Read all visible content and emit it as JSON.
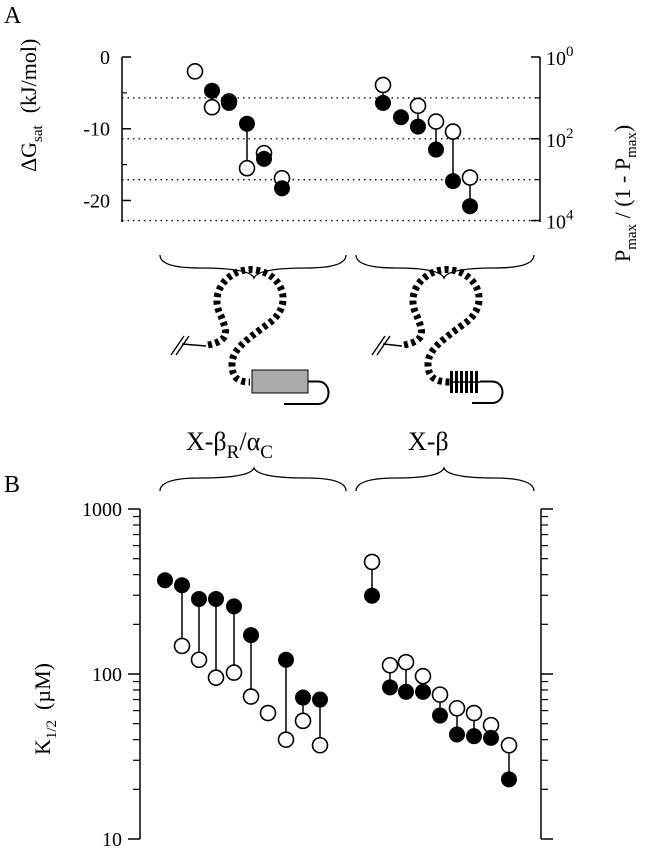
{
  "chart_data": [
    {
      "panel": "A",
      "type": "scatter",
      "ylabel_left_main": "ΔG",
      "ylabel_left_sub": "sat",
      "ylabel_left_units": "(kJ/mol)",
      "ylim": [
        -23,
        0
      ],
      "yticks": [
        {
          "value": 0,
          "label": "0"
        },
        {
          "value": -10,
          "label": "-10"
        },
        {
          "value": -20,
          "label": "-20"
        }
      ],
      "ylabel_right": {
        "p1": "P",
        "p1_sub": "max",
        "p2": " / (1 - P",
        "p2_sub": "max",
        "p3": ")"
      },
      "right_ticks": [
        {
          "value": 0,
          "base": "10",
          "exp": "0"
        },
        {
          "value": -11.4,
          "base": "10",
          "exp": "2"
        },
        {
          "value": -22.8,
          "base": "10",
          "exp": "4"
        }
      ],
      "dotted_gridlines": [
        -5.7,
        -11.4,
        -17.1,
        -22.8
      ],
      "groups": [
        {
          "name": "X-βR/αC",
          "points": [
            {
              "x": 1,
              "open": -2.0
            },
            {
              "x": 2,
              "open": -7.0,
              "filled": -4.7
            },
            {
              "x": 3,
              "open": -6.2,
              "filled": -6.4
            },
            {
              "x": 4,
              "open": -15.5,
              "filled": -9.3
            },
            {
              "x": 5,
              "open": -13.4,
              "filled": -14.2
            },
            {
              "x": 6,
              "open": -16.9,
              "filled": -18.3
            }
          ]
        },
        {
          "name": "X-β",
          "points": [
            {
              "x": 8,
              "open": -3.9,
              "filled": -6.4
            },
            {
              "x": 9,
              "filled": -8.4
            },
            {
              "x": 10,
              "open": -6.8,
              "filled": -9.7
            },
            {
              "x": 11,
              "open": -9.0,
              "filled": -12.9
            },
            {
              "x": 12,
              "open": -10.4,
              "filled": -17.3
            },
            {
              "x": 13,
              "open": -16.8,
              "filled": -20.8
            }
          ]
        }
      ]
    },
    {
      "panel": "B",
      "type": "scatter",
      "yscale": "log",
      "ylabel_main": "K",
      "ylabel_sub": "1/2",
      "ylabel_units": "(µM)",
      "ylim": [
        10,
        1000
      ],
      "yticks": [
        {
          "value": 1000,
          "label": "1000"
        },
        {
          "value": 100,
          "label": "100"
        },
        {
          "value": 10,
          "label": "10"
        }
      ],
      "groups": [
        {
          "name": "X-βR/αC",
          "points": [
            {
              "x": 1,
              "filled": 370
            },
            {
              "x": 2,
              "filled": 345,
              "open": 148
            },
            {
              "x": 3,
              "filled": 285,
              "open": 122
            },
            {
              "x": 4,
              "filled": 285,
              "open": 95
            },
            {
              "x": 5,
              "filled": 257,
              "open": 102
            },
            {
              "x": 6,
              "filled": 172,
              "open": 73
            },
            {
              "x": 7,
              "open": 58
            },
            {
              "x": 8,
              "filled": 122,
              "open": 40
            },
            {
              "x": 9,
              "filled": 72,
              "open": 52
            },
            {
              "x": 10,
              "filled": 70,
              "open": 37
            }
          ]
        },
        {
          "name": "X-β",
          "points": [
            {
              "x": 12,
              "filled": 298,
              "open": 478
            },
            {
              "x": 13,
              "filled": 83,
              "open": 113
            },
            {
              "x": 14,
              "filled": 78,
              "open": 118
            },
            {
              "x": 15,
              "filled": 78,
              "open": 97
            },
            {
              "x": 16,
              "filled": 56,
              "open": 75
            },
            {
              "x": 17,
              "filled": 43,
              "open": 62
            },
            {
              "x": 18,
              "filled": 42,
              "open": 58
            },
            {
              "x": 19,
              "filled": 41,
              "open": 49
            },
            {
              "x": 20,
              "filled": 23,
              "open": 37
            }
          ]
        }
      ]
    }
  ],
  "labels": {
    "panel_a": "A",
    "panel_b": "B",
    "construct_left_1": "X-β",
    "construct_left_sub1": "R",
    "construct_left_2": "/α",
    "construct_left_sub2": "C",
    "construct_right": "X-β"
  }
}
